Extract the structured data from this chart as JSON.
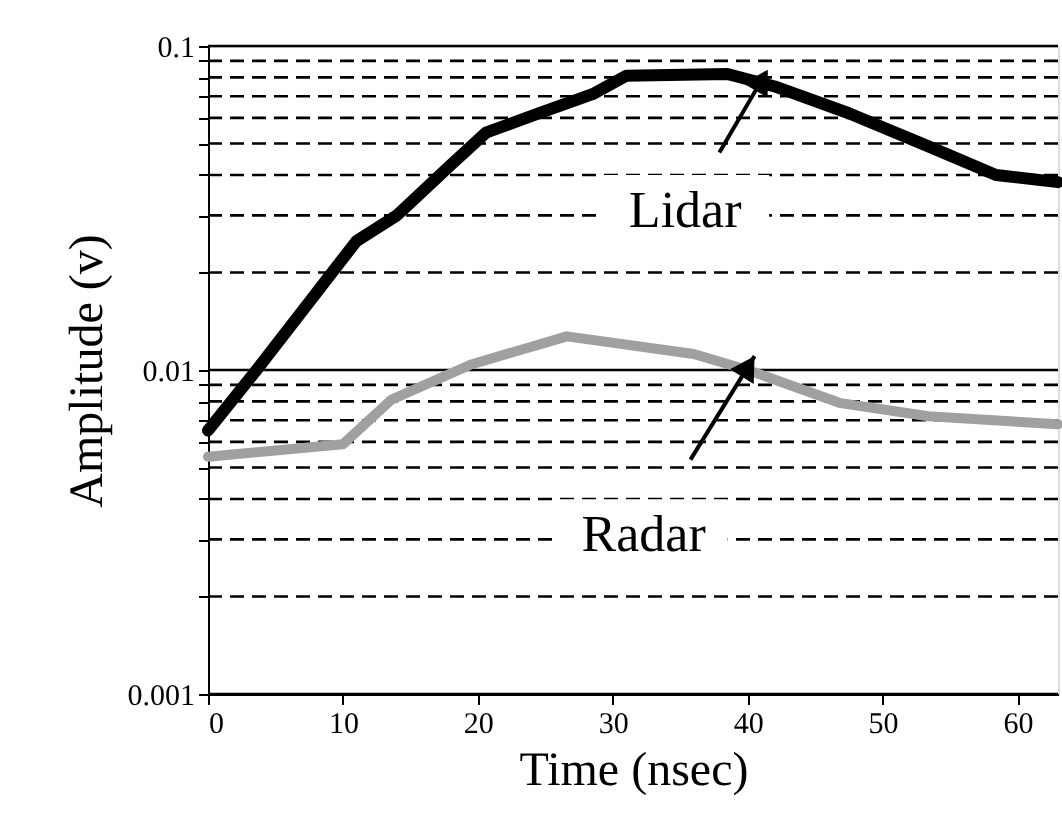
{
  "chart_data": {
    "type": "line",
    "xlabel": "Time (nsec)",
    "ylabel": "Amplitude (v)",
    "log": "y",
    "grid": "y",
    "ref_lines": [
      {
        "axis": "y",
        "value": 0.01
      }
    ],
    "marker": "none",
    "line_style": "solid",
    "xlim": [
      0,
      63
    ],
    "xticks": [
      0,
      10,
      20,
      30,
      40,
      50,
      60
    ],
    "ylim": [
      0.001,
      0.1
    ],
    "yticks": [
      0.001,
      {
        "value": 0.002,
        "label": null
      },
      {
        "value": 0.003,
        "label": null
      },
      {
        "value": 0.004,
        "label": null
      },
      {
        "value": 0.005,
        "label": null
      },
      {
        "value": 0.006,
        "label": null
      },
      {
        "value": 0.007,
        "label": null
      },
      {
        "value": 0.008,
        "label": null
      },
      {
        "value": 0.009,
        "label": null
      },
      0.01,
      {
        "value": 0.02,
        "label": null
      },
      {
        "value": 0.03,
        "label": null
      },
      {
        "value": 0.04,
        "label": null
      },
      {
        "value": 0.05,
        "label": null
      },
      {
        "value": 0.06,
        "label": null
      },
      {
        "value": 0.07,
        "label": null
      },
      {
        "value": 0.08,
        "label": null
      },
      {
        "value": 0.09,
        "label": null
      },
      0.1
    ],
    "series": [
      {
        "color": "#000000",
        "x": [
          0,
          3.6,
          7.6,
          11,
          14,
          18,
          20.6,
          24.5,
          28.5,
          31,
          38.5,
          42,
          47.5,
          53.4,
          58.4,
          63
        ],
        "values": [
          0.0065,
          0.01,
          0.0164,
          0.025,
          0.03,
          0.043,
          0.054,
          0.062,
          0.071,
          0.081,
          0.082,
          0.075,
          0.062,
          0.049,
          0.04,
          0.038
        ]
      },
      {
        "color": "#a0a0a0",
        "x": [
          0,
          10,
          13.6,
          19.5,
          26.6,
          36,
          40,
          46.9,
          53.4,
          63
        ],
        "values": [
          0.0054,
          0.0059,
          0.0081,
          0.0104,
          0.0127,
          0.0112,
          0.01,
          0.0079,
          0.0072,
          0.0068
        ]
      }
    ],
    "annotations": [
      {
        "text": "Lidar",
        "x": 41,
        "y": 0.078
      },
      {
        "text": "Radar",
        "x": 40,
        "y": 0.0102
      }
    ]
  }
}
